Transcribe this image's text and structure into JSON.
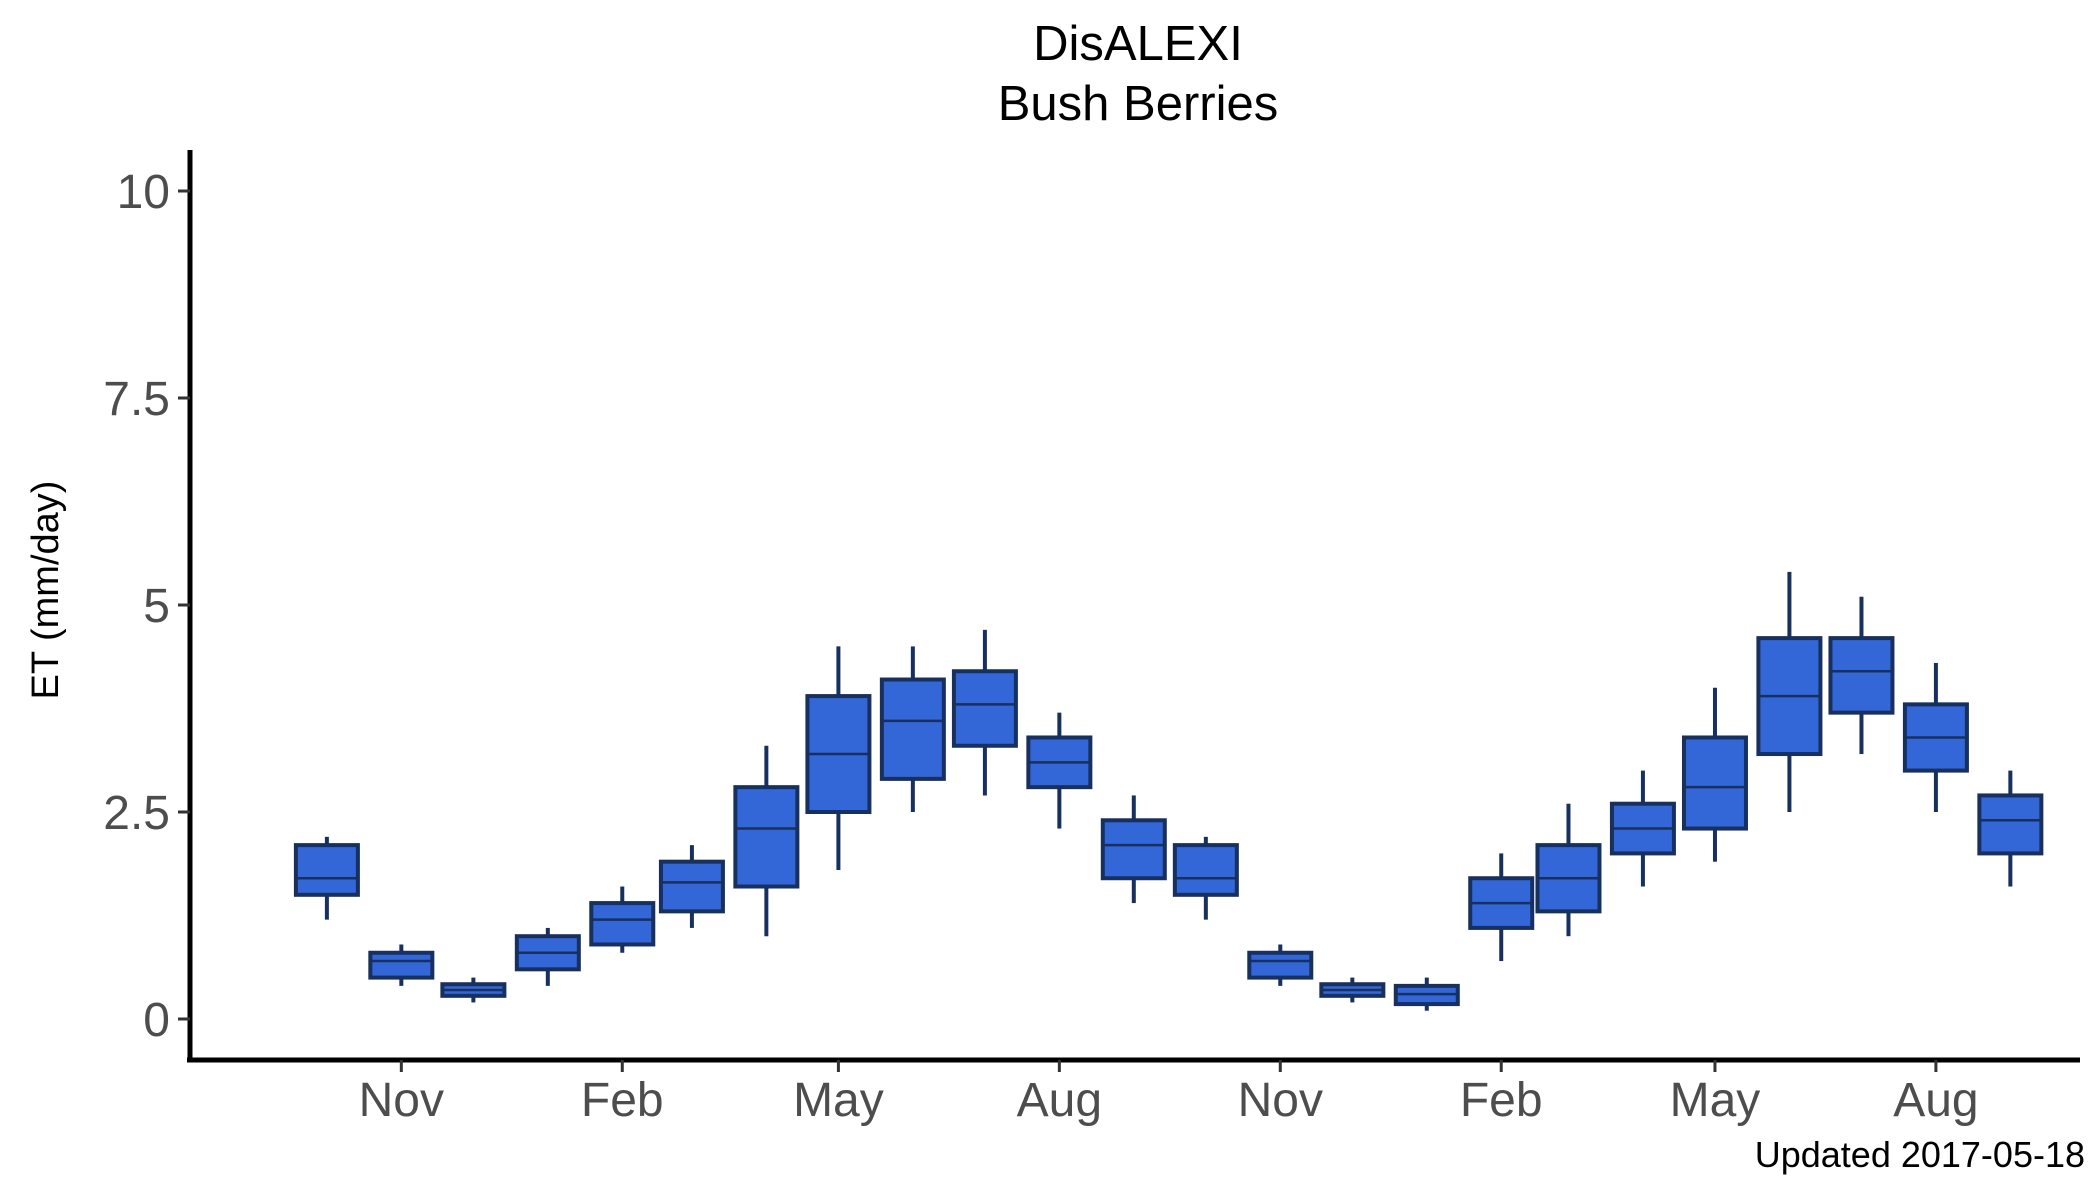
{
  "chart_data": {
    "type": "boxplot",
    "title": "DisALEXI",
    "subtitle": "Bush Berries",
    "ylabel": "ET (mm/day)",
    "xlabel": "",
    "caption": "Updated  2017-05-18",
    "ylim": [
      -0.5,
      10.5
    ],
    "y_ticks": [
      0,
      2.5,
      5,
      7.5,
      10
    ],
    "y_tick_labels": [
      "0",
      "2.5",
      "5",
      "7.5",
      "10"
    ],
    "x_domain": [
      "2015-08-05",
      "2017-09-30"
    ],
    "x_ticks": [
      {
        "date": "2015-11-01",
        "label": "Nov"
      },
      {
        "date": "2016-02-01",
        "label": "Feb"
      },
      {
        "date": "2016-05-01",
        "label": "May"
      },
      {
        "date": "2016-08-01",
        "label": "Aug"
      },
      {
        "date": "2016-11-01",
        "label": "Nov"
      },
      {
        "date": "2017-02-01",
        "label": "Feb"
      },
      {
        "date": "2017-05-01",
        "label": "May"
      },
      {
        "date": "2017-08-01",
        "label": "Aug"
      }
    ],
    "box_fill": "#3366d6",
    "box_stroke": "#17305e",
    "grid": false,
    "legend": "none",
    "boxes": [
      {
        "date": "2015-10-01",
        "min": 1.2,
        "q1": 1.5,
        "median": 1.7,
        "q3": 2.1,
        "max": 2.2
      },
      {
        "date": "2015-11-01",
        "min": 0.4,
        "q1": 0.5,
        "median": 0.7,
        "q3": 0.8,
        "max": 0.9
      },
      {
        "date": "2015-12-01",
        "min": 0.2,
        "q1": 0.28,
        "median": 0.35,
        "q3": 0.42,
        "max": 0.5
      },
      {
        "date": "2016-01-01",
        "min": 0.4,
        "q1": 0.6,
        "median": 0.8,
        "q3": 1.0,
        "max": 1.1
      },
      {
        "date": "2016-02-01",
        "min": 0.8,
        "q1": 0.9,
        "median": 1.2,
        "q3": 1.4,
        "max": 1.6
      },
      {
        "date": "2016-03-01",
        "min": 1.1,
        "q1": 1.3,
        "median": 1.65,
        "q3": 1.9,
        "max": 2.1
      },
      {
        "date": "2016-04-01",
        "min": 1.0,
        "q1": 1.6,
        "median": 2.3,
        "q3": 2.8,
        "max": 3.3
      },
      {
        "date": "2016-05-01",
        "min": 1.8,
        "q1": 2.5,
        "median": 3.2,
        "q3": 3.9,
        "max": 4.5
      },
      {
        "date": "2016-06-01",
        "min": 2.5,
        "q1": 2.9,
        "median": 3.6,
        "q3": 4.1,
        "max": 4.5
      },
      {
        "date": "2016-07-01",
        "min": 2.7,
        "q1": 3.3,
        "median": 3.8,
        "q3": 4.2,
        "max": 4.7
      },
      {
        "date": "2016-08-01",
        "min": 2.3,
        "q1": 2.8,
        "median": 3.1,
        "q3": 3.4,
        "max": 3.7
      },
      {
        "date": "2016-09-01",
        "min": 1.4,
        "q1": 1.7,
        "median": 2.1,
        "q3": 2.4,
        "max": 2.7
      },
      {
        "date": "2016-10-01",
        "min": 1.2,
        "q1": 1.5,
        "median": 1.7,
        "q3": 2.1,
        "max": 2.2
      },
      {
        "date": "2016-11-01",
        "min": 0.4,
        "q1": 0.5,
        "median": 0.7,
        "q3": 0.8,
        "max": 0.9
      },
      {
        "date": "2016-12-01",
        "min": 0.2,
        "q1": 0.28,
        "median": 0.35,
        "q3": 0.42,
        "max": 0.5
      },
      {
        "date": "2017-01-01",
        "min": 0.1,
        "q1": 0.18,
        "median": 0.3,
        "q3": 0.4,
        "max": 0.5
      },
      {
        "date": "2017-02-01",
        "min": 0.7,
        "q1": 1.1,
        "median": 1.4,
        "q3": 1.7,
        "max": 2.0
      },
      {
        "date": "2017-03-01",
        "min": 1.0,
        "q1": 1.3,
        "median": 1.7,
        "q3": 2.1,
        "max": 2.6
      },
      {
        "date": "2017-04-01",
        "min": 1.6,
        "q1": 2.0,
        "median": 2.3,
        "q3": 2.6,
        "max": 3.0
      },
      {
        "date": "2017-05-01",
        "min": 1.9,
        "q1": 2.3,
        "median": 2.8,
        "q3": 3.4,
        "max": 4.0
      },
      {
        "date": "2017-06-01",
        "min": 2.5,
        "q1": 3.2,
        "median": 3.9,
        "q3": 4.6,
        "max": 5.4
      },
      {
        "date": "2017-07-01",
        "min": 3.2,
        "q1": 3.7,
        "median": 4.2,
        "q3": 4.6,
        "max": 5.1
      },
      {
        "date": "2017-08-01",
        "min": 2.5,
        "q1": 3.0,
        "median": 3.4,
        "q3": 3.8,
        "max": 4.3
      },
      {
        "date": "2017-09-01",
        "min": 1.6,
        "q1": 2.0,
        "median": 2.4,
        "q3": 2.7,
        "max": 3.0
      }
    ]
  }
}
